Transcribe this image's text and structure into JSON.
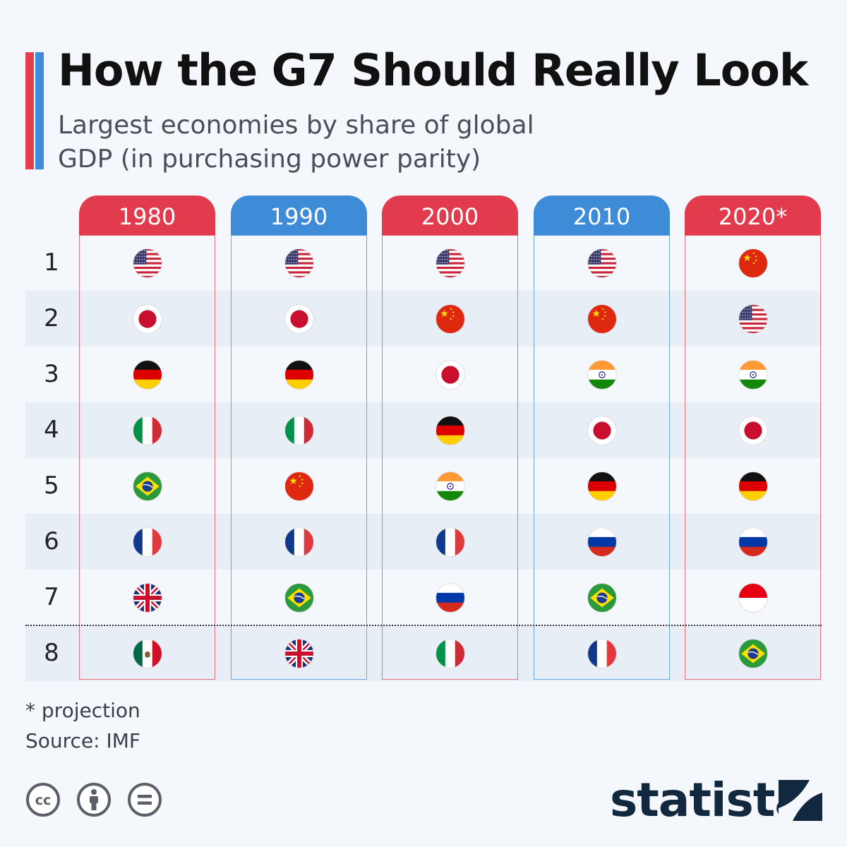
{
  "title": "How the G7 Should Really Look",
  "subtitle": "Largest economies by share of global GDP (in purchasing power parity)",
  "chart_data": {
    "type": "table",
    "row_labels": [
      "1",
      "2",
      "3",
      "4",
      "5",
      "6",
      "7",
      "8"
    ],
    "columns": [
      {
        "header": "1980",
        "color": "#e23b4e",
        "rankings": [
          "usa",
          "japan",
          "germany",
          "italy",
          "brazil",
          "france",
          "uk",
          "mexico"
        ]
      },
      {
        "header": "1990",
        "color": "#3e8bd8",
        "rankings": [
          "usa",
          "japan",
          "germany",
          "italy",
          "china",
          "france",
          "brazil",
          "uk"
        ]
      },
      {
        "header": "2000",
        "color": "#e23b4e",
        "rankings": [
          "usa",
          "china",
          "japan",
          "germany",
          "india",
          "france",
          "russia",
          "italy"
        ]
      },
      {
        "header": "2010",
        "color": "#3e8bd8",
        "rankings": [
          "usa",
          "china",
          "india",
          "japan",
          "germany",
          "russia",
          "brazil",
          "france"
        ]
      },
      {
        "header": "2020*",
        "color": "#e23b4e",
        "rankings": [
          "china",
          "usa",
          "india",
          "japan",
          "germany",
          "russia",
          "indonesia",
          "brazil"
        ]
      }
    ],
    "divider_after_rank": 7
  },
  "footnote": "* projection",
  "source": "Source: IMF",
  "brand": "statista",
  "license_icons": [
    "cc-icon",
    "attribution-icon",
    "no-derivatives-icon"
  ],
  "colors": {
    "red": "#e23b4e",
    "blue": "#3e8bd8",
    "background": "#f4f7fb",
    "band": "#e8eef6"
  }
}
